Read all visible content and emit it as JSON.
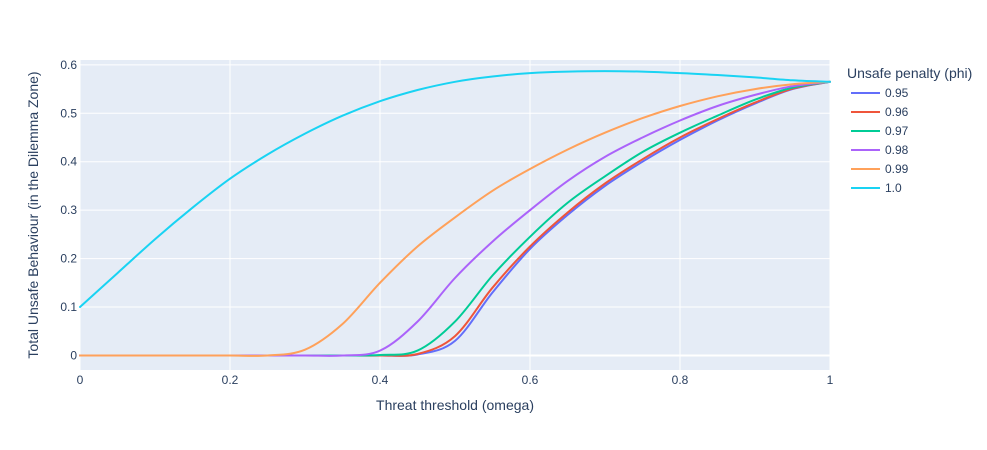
{
  "chart_data": {
    "type": "line",
    "xlabel": "Threat threshold (omega)",
    "ylabel": "Total Unsafe Behaviour (in the Dilemma Zone)",
    "xlim": [
      0,
      1
    ],
    "ylim": [
      -0.03,
      0.61
    ],
    "x_ticks": [
      "0",
      "0.2",
      "0.4",
      "0.6",
      "0.8",
      "1"
    ],
    "y_ticks": [
      "0",
      "0.1",
      "0.2",
      "0.3",
      "0.4",
      "0.5",
      "0.6"
    ],
    "grid": true,
    "legend_title": "Unsafe penalty (phi)",
    "legend_position": "right",
    "x": [
      0,
      0.05,
      0.1,
      0.15,
      0.2,
      0.25,
      0.3,
      0.35,
      0.4,
      0.45,
      0.5,
      0.55,
      0.6,
      0.65,
      0.7,
      0.75,
      0.8,
      0.85,
      0.9,
      0.95,
      1.0
    ],
    "series": [
      {
        "name": "0.95",
        "color": "#636efa",
        "values": [
          0,
          0,
          0,
          0,
          0,
          0,
          0,
          0,
          0,
          0.002,
          0.03,
          0.13,
          0.22,
          0.29,
          0.35,
          0.4,
          0.445,
          0.485,
          0.52,
          0.55,
          0.565
        ]
      },
      {
        "name": "0.96",
        "color": "#ef553b",
        "values": [
          0,
          0,
          0,
          0,
          0,
          0,
          0,
          0,
          0,
          0.003,
          0.04,
          0.14,
          0.225,
          0.295,
          0.355,
          0.405,
          0.45,
          0.488,
          0.522,
          0.551,
          0.565
        ]
      },
      {
        "name": "0.97",
        "color": "#00cc96",
        "values": [
          0,
          0,
          0,
          0,
          0,
          0,
          0,
          0,
          0.001,
          0.01,
          0.07,
          0.165,
          0.245,
          0.315,
          0.37,
          0.42,
          0.46,
          0.495,
          0.528,
          0.553,
          0.565
        ]
      },
      {
        "name": "0.98",
        "color": "#ab63fa",
        "values": [
          0,
          0,
          0,
          0,
          0,
          0,
          0,
          0,
          0.01,
          0.07,
          0.16,
          0.235,
          0.3,
          0.36,
          0.41,
          0.45,
          0.485,
          0.515,
          0.538,
          0.556,
          0.565
        ]
      },
      {
        "name": "0.99",
        "color": "#ffa15a",
        "values": [
          0,
          0,
          0,
          0,
          0,
          0,
          0.012,
          0.065,
          0.15,
          0.225,
          0.285,
          0.34,
          0.385,
          0.425,
          0.46,
          0.49,
          0.515,
          0.535,
          0.55,
          0.56,
          0.565
        ]
      },
      {
        "name": "1.0",
        "color": "#19d3f3",
        "values": [
          0.1,
          0.17,
          0.24,
          0.305,
          0.365,
          0.415,
          0.458,
          0.495,
          0.525,
          0.548,
          0.565,
          0.576,
          0.583,
          0.586,
          0.587,
          0.586,
          0.583,
          0.579,
          0.574,
          0.568,
          0.565
        ]
      }
    ]
  }
}
